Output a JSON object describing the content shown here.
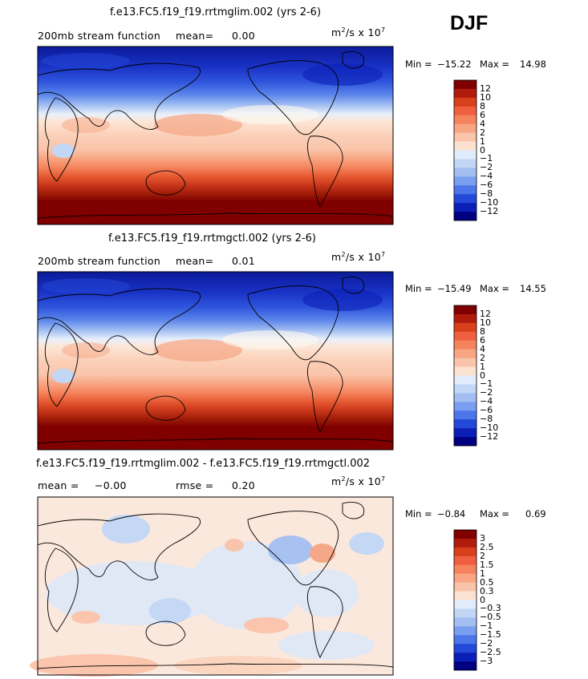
{
  "season": "DJF",
  "unit_prefix": "m",
  "unit_exp1": "2",
  "unit_mid": "/s x 10",
  "unit_exp2": "7",
  "panels": [
    {
      "title": "f.e13.FC5.f19_f19.rrtmglim.002 (yrs 2-6)",
      "left_label": "200mb stream function",
      "stat1_label": "mean=",
      "stat1_value": "0.00",
      "stat2_label": "",
      "stat2_value": "",
      "min_label": "Min =",
      "min_value": "−15.22",
      "max_label": "Max =",
      "max_value": "14.98",
      "colorbar": [
        "12",
        "10",
        "8",
        "6",
        "4",
        "2",
        "1",
        "0",
        "−1",
        "−2",
        "−4",
        "−6",
        "−8",
        "−10",
        "−12"
      ]
    },
    {
      "title": "f.e13.FC5.f19_f19.rrtmgctl.002 (yrs 2-6)",
      "left_label": "200mb stream function",
      "stat1_label": "mean=",
      "stat1_value": "0.01",
      "stat2_label": "",
      "stat2_value": "",
      "min_label": "Min =",
      "min_value": "−15.49",
      "max_label": "Max =",
      "max_value": "14.55",
      "colorbar": [
        "12",
        "10",
        "8",
        "6",
        "4",
        "2",
        "1",
        "0",
        "−1",
        "−2",
        "−4",
        "−6",
        "−8",
        "−10",
        "−12"
      ]
    },
    {
      "title": "f.e13.FC5.f19_f19.rrtmglim.002 - f.e13.FC5.f19_f19.rrtmgctl.002",
      "left_label": "",
      "stat1_label": "mean =",
      "stat1_value": "−0.00",
      "stat2_label": "rmse =",
      "stat2_value": "0.20",
      "min_label": "Min =",
      "min_value": "−0.84",
      "max_label": "Max =",
      "max_value": "0.69",
      "colorbar": [
        "3",
        "2.5",
        "2",
        "1.5",
        "1",
        "0.5",
        "0.3",
        "0",
        "−0.3",
        "−0.5",
        "−1",
        "−1.5",
        "−2",
        "−2.5",
        "−3"
      ]
    }
  ],
  "colors": {
    "scale": [
      "#800000",
      "#b01c0c",
      "#d8401c",
      "#f06040",
      "#f5845e",
      "#f8a583",
      "#fac4aa",
      "#fbe2d0",
      "#fef8ef",
      "#e0ebfb",
      "#c2d7f6",
      "#a3bff2",
      "#7a9ff0",
      "#4c76ea",
      "#2448d8",
      "#0b1fb8",
      "#000080"
    ]
  },
  "chart_data": [
    {
      "type": "heatmap",
      "title": "f.e13.FC5.f19_f19.rrtmglim.002 (yrs 2-6)",
      "variable": "200mb stream function",
      "mean": 0.0,
      "min": -15.22,
      "max": 14.98,
      "levels": [
        -12,
        -10,
        -8,
        -6,
        -4,
        -2,
        -1,
        0,
        1,
        2,
        4,
        6,
        8,
        10,
        12
      ],
      "pattern": "zonal bands: strongly negative in the north, positive in the south"
    },
    {
      "type": "heatmap",
      "title": "f.e13.FC5.f19_f19.rrtmgctl.002 (yrs 2-6)",
      "variable": "200mb stream function",
      "mean": 0.01,
      "min": -15.49,
      "max": 14.55,
      "levels": [
        -12,
        -10,
        -8,
        -6,
        -4,
        -2,
        -1,
        0,
        1,
        2,
        4,
        6,
        8,
        10,
        12
      ],
      "pattern": "zonal bands: strongly negative in the north, positive in the south"
    },
    {
      "type": "heatmap",
      "title": "f.e13.FC5.f19_f19.rrtmglim.002 - f.e13.FC5.f19_f19.rrtmgctl.002",
      "mean": -0.0,
      "rmse": 0.2,
      "min": -0.84,
      "max": 0.69,
      "levels": [
        -3,
        -2.5,
        -2,
        -1.5,
        -1,
        -0.5,
        -0.3,
        0,
        0.3,
        0.5,
        1,
        1.5,
        2,
        2.5,
        3
      ],
      "pattern": "small patchy anomalies near zero"
    }
  ]
}
